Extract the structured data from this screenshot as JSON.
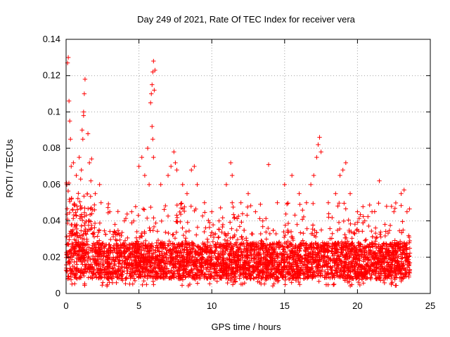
{
  "chart_data": {
    "type": "scatter",
    "title": "Day 249 of 2021, Rate Of TEC Index for receiver vera",
    "xlabel": "GPS time / hours",
    "ylabel": "ROTI / TECUs",
    "xlim": [
      0,
      25
    ],
    "ylim": [
      0,
      0.14
    ],
    "xticks": [
      "0",
      "5",
      "10",
      "15",
      "20",
      "25"
    ],
    "yticks": [
      "0",
      "0.02",
      "0.04",
      "0.06",
      "0.08",
      "0.1",
      "0.12",
      "0.14"
    ],
    "grid": true,
    "marker": "+",
    "color": "#ff0000",
    "series": [
      {
        "values": [
          [
            0.05,
            0.06
          ],
          [
            0.1,
            0.127
          ],
          [
            0.15,
            0.13
          ],
          [
            0.2,
            0.106
          ],
          [
            0.25,
            0.095
          ],
          [
            0.3,
            0.085
          ],
          [
            0.35,
            0.07
          ],
          [
            0.5,
            0.072
          ],
          [
            0.7,
            0.065
          ],
          [
            0.9,
            0.075
          ],
          [
            1.0,
            0.063
          ],
          [
            1.05,
            0.068
          ],
          [
            1.1,
            0.09
          ],
          [
            1.15,
            0.085
          ],
          [
            1.2,
            0.1
          ],
          [
            1.25,
            0.11
          ],
          [
            1.3,
            0.118
          ],
          [
            1.2,
            0.098
          ],
          [
            1.5,
            0.088
          ],
          [
            1.6,
            0.072
          ],
          [
            1.7,
            0.062
          ],
          [
            2.0,
            0.055
          ],
          [
            2.3,
            0.06
          ],
          [
            2.4,
            0.05
          ],
          [
            3.0,
            0.045
          ],
          [
            4.0,
            0.04
          ],
          [
            4.5,
            0.045
          ],
          [
            5.0,
            0.07
          ],
          [
            5.2,
            0.075
          ],
          [
            5.4,
            0.065
          ],
          [
            5.6,
            0.08
          ],
          [
            5.7,
            0.06
          ],
          [
            5.8,
            0.105
          ],
          [
            5.85,
            0.11
          ],
          [
            5.9,
            0.115
          ],
          [
            5.95,
            0.122
          ],
          [
            6.0,
            0.128
          ],
          [
            6.05,
            0.112
          ],
          [
            6.1,
            0.123
          ],
          [
            5.9,
            0.092
          ],
          [
            5.95,
            0.085
          ],
          [
            6.0,
            0.075
          ],
          [
            6.5,
            0.06
          ],
          [
            7.0,
            0.065
          ],
          [
            7.2,
            0.07
          ],
          [
            7.4,
            0.078
          ],
          [
            7.5,
            0.072
          ],
          [
            7.6,
            0.068
          ],
          [
            8.0,
            0.06
          ],
          [
            8.3,
            0.055
          ],
          [
            8.6,
            0.068
          ],
          [
            8.8,
            0.07
          ],
          [
            9.0,
            0.06
          ],
          [
            9.5,
            0.05
          ],
          [
            10.0,
            0.045
          ],
          [
            10.5,
            0.04
          ],
          [
            11.0,
            0.06
          ],
          [
            11.3,
            0.072
          ],
          [
            11.4,
            0.065
          ],
          [
            12.0,
            0.05
          ],
          [
            12.5,
            0.055
          ],
          [
            13.0,
            0.045
          ],
          [
            13.5,
            0.04
          ],
          [
            13.9,
            0.071
          ],
          [
            14.5,
            0.05
          ],
          [
            15.0,
            0.06
          ],
          [
            15.5,
            0.065
          ],
          [
            16.0,
            0.055
          ],
          [
            16.5,
            0.05
          ],
          [
            16.8,
            0.06
          ],
          [
            17.0,
            0.065
          ],
          [
            17.2,
            0.075
          ],
          [
            17.3,
            0.082
          ],
          [
            17.4,
            0.086
          ],
          [
            17.5,
            0.078
          ],
          [
            18.0,
            0.05
          ],
          [
            18.5,
            0.055
          ],
          [
            18.8,
            0.065
          ],
          [
            19.0,
            0.068
          ],
          [
            19.2,
            0.072
          ],
          [
            19.5,
            0.055
          ],
          [
            20.0,
            0.045
          ],
          [
            20.5,
            0.04
          ],
          [
            21.0,
            0.045
          ],
          [
            21.5,
            0.062
          ],
          [
            22.0,
            0.048
          ],
          [
            22.5,
            0.045
          ],
          [
            23.0,
            0.055
          ],
          [
            23.2,
            0.057
          ],
          [
            23.4,
            0.045
          ]
        ]
      }
    ],
    "dense_band": {
      "x_range": [
        0,
        23.6
      ],
      "y_min": 0.004,
      "y_max": 0.035,
      "typical": [
        0.008,
        0.028
      ]
    }
  }
}
